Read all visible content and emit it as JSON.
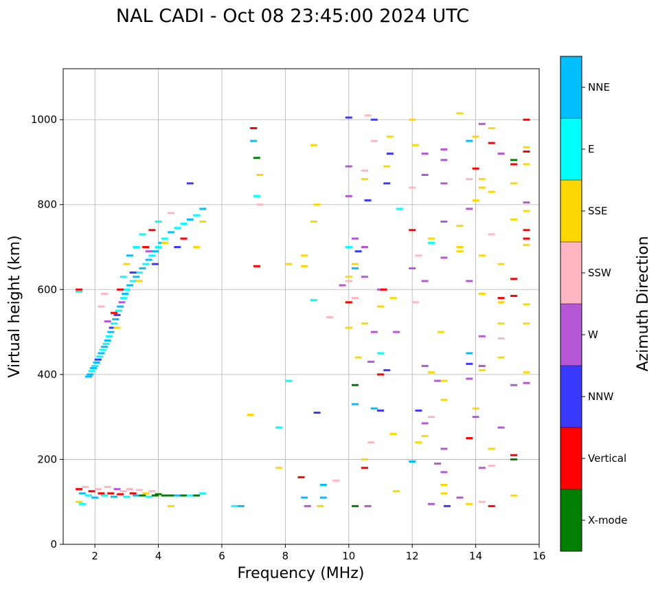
{
  "chart_data": {
    "type": "scatter",
    "title": "NAL CADI - Oct 08 23:45:00 2024 UTC",
    "xlabel": "Frequency (MHz)",
    "ylabel": "Virtual height (km)",
    "xlim": [
      1,
      16
    ],
    "ylim": [
      0,
      1120
    ],
    "xticks": [
      2,
      4,
      6,
      8,
      10,
      12,
      14,
      16
    ],
    "yticks": [
      0,
      200,
      400,
      600,
      800,
      1000
    ],
    "grid": true,
    "colorbar": {
      "label": "Azimuth Direction",
      "categories": [
        {
          "name": "X-mode",
          "color": "#008000"
        },
        {
          "name": "Vertical",
          "color": "#ff0000"
        },
        {
          "name": "NNW",
          "color": "#3a3aff"
        },
        {
          "name": "W",
          "color": "#b557d6"
        },
        {
          "name": "SSW",
          "color": "#ffb6c1"
        },
        {
          "name": "SSE",
          "color": "#ffd700"
        },
        {
          "name": "E",
          "color": "#00ffff"
        },
        {
          "name": "NNE",
          "color": "#00bfff"
        }
      ]
    },
    "note": "Echoes listed as [frequency MHz, virtual height km, direction]; estimated from the plot.",
    "points": [
      [
        1.5,
        600,
        "Vertical"
      ],
      [
        1.5,
        595,
        "E"
      ],
      [
        1.8,
        395,
        "NNE"
      ],
      [
        1.85,
        400,
        "NNE"
      ],
      [
        1.9,
        408,
        "E"
      ],
      [
        1.95,
        415,
        "NNE"
      ],
      [
        2.0,
        420,
        "E"
      ],
      [
        2.05,
        428,
        "NNE"
      ],
      [
        2.1,
        435,
        "NNW"
      ],
      [
        2.15,
        442,
        "E"
      ],
      [
        2.2,
        450,
        "NNE"
      ],
      [
        2.25,
        458,
        "E"
      ],
      [
        2.3,
        465,
        "NNE"
      ],
      [
        2.35,
        472,
        "E"
      ],
      [
        2.4,
        480,
        "NNE"
      ],
      [
        2.45,
        490,
        "E"
      ],
      [
        2.5,
        500,
        "NNE"
      ],
      [
        2.55,
        510,
        "NNW"
      ],
      [
        2.6,
        520,
        "E"
      ],
      [
        2.65,
        530,
        "NNE"
      ],
      [
        2.7,
        540,
        "NNW"
      ],
      [
        2.75,
        550,
        "E"
      ],
      [
        2.8,
        560,
        "NNE"
      ],
      [
        2.85,
        570,
        "W"
      ],
      [
        2.9,
        580,
        "E"
      ],
      [
        2.95,
        590,
        "NNE"
      ],
      [
        3.0,
        600,
        "E"
      ],
      [
        3.1,
        610,
        "NNE"
      ],
      [
        3.2,
        620,
        "E"
      ],
      [
        3.3,
        630,
        "NNE"
      ],
      [
        3.4,
        640,
        "E"
      ],
      [
        3.5,
        650,
        "NNE"
      ],
      [
        3.6,
        660,
        "E"
      ],
      [
        3.7,
        670,
        "NNE"
      ],
      [
        3.8,
        680,
        "E"
      ],
      [
        3.9,
        690,
        "NNE"
      ],
      [
        4.0,
        700,
        "E"
      ],
      [
        4.1,
        710,
        "NNE"
      ],
      [
        4.2,
        720,
        "E"
      ],
      [
        4.4,
        735,
        "NNE"
      ],
      [
        4.6,
        745,
        "E"
      ],
      [
        4.8,
        755,
        "E"
      ],
      [
        5.0,
        765,
        "NNE"
      ],
      [
        5.2,
        775,
        "E"
      ],
      [
        5.4,
        790,
        "NNE"
      ],
      [
        2.2,
        560,
        "SSW"
      ],
      [
        2.3,
        590,
        "SSW"
      ],
      [
        2.4,
        525,
        "W"
      ],
      [
        2.6,
        545,
        "Vertical"
      ],
      [
        2.7,
        510,
        "SSE"
      ],
      [
        2.8,
        600,
        "Vertical"
      ],
      [
        2.9,
        630,
        "E"
      ],
      [
        3.0,
        660,
        "SSE"
      ],
      [
        3.1,
        680,
        "NNE"
      ],
      [
        3.2,
        640,
        "NNW"
      ],
      [
        3.3,
        700,
        "E"
      ],
      [
        3.4,
        620,
        "SSE"
      ],
      [
        3.5,
        730,
        "E"
      ],
      [
        3.6,
        700,
        "Vertical"
      ],
      [
        3.7,
        690,
        "W"
      ],
      [
        3.8,
        740,
        "Vertical"
      ],
      [
        3.9,
        660,
        "NNW"
      ],
      [
        4.0,
        760,
        "E"
      ],
      [
        4.2,
        710,
        "SSE"
      ],
      [
        4.4,
        780,
        "SSW"
      ],
      [
        4.6,
        700,
        "NNW"
      ],
      [
        4.8,
        720,
        "Vertical"
      ],
      [
        5.0,
        850,
        "NNW"
      ],
      [
        5.2,
        700,
        "SSE"
      ],
      [
        5.4,
        760,
        "SSE"
      ],
      [
        1.5,
        130,
        "Vertical"
      ],
      [
        1.5,
        100,
        "SSE"
      ],
      [
        1.6,
        120,
        "NNE"
      ],
      [
        1.6,
        95,
        "E"
      ],
      [
        1.7,
        135,
        "SSW"
      ],
      [
        1.8,
        115,
        "E"
      ],
      [
        1.9,
        125,
        "Vertical"
      ],
      [
        2.0,
        110,
        "NNE"
      ],
      [
        2.1,
        130,
        "SSW"
      ],
      [
        2.2,
        120,
        "Vertical"
      ],
      [
        2.3,
        115,
        "E"
      ],
      [
        2.4,
        135,
        "SSW"
      ],
      [
        2.5,
        120,
        "Vertical"
      ],
      [
        2.6,
        112,
        "NNE"
      ],
      [
        2.7,
        130,
        "W"
      ],
      [
        2.8,
        118,
        "Vertical"
      ],
      [
        2.9,
        125,
        "SSW"
      ],
      [
        3.0,
        112,
        "E"
      ],
      [
        3.1,
        130,
        "SSW"
      ],
      [
        3.2,
        120,
        "Vertical"
      ],
      [
        3.3,
        115,
        "NNE"
      ],
      [
        3.4,
        128,
        "SSW"
      ],
      [
        3.5,
        115,
        "X-mode"
      ],
      [
        3.6,
        120,
        "SSE"
      ],
      [
        3.7,
        112,
        "E"
      ],
      [
        3.8,
        125,
        "SSW"
      ],
      [
        3.9,
        115,
        "X-mode"
      ],
      [
        4.0,
        118,
        "X-mode"
      ],
      [
        4.2,
        115,
        "X-mode"
      ],
      [
        4.4,
        115,
        "X-mode"
      ],
      [
        4.6,
        115,
        "NNE"
      ],
      [
        4.8,
        115,
        "X-mode"
      ],
      [
        5.0,
        115,
        "E"
      ],
      [
        5.2,
        115,
        "X-mode"
      ],
      [
        5.4,
        120,
        "E"
      ],
      [
        4.4,
        90,
        "SSE"
      ],
      [
        6.4,
        90,
        "E"
      ],
      [
        6.6,
        90,
        "NNE"
      ],
      [
        7.0,
        980,
        "Vertical"
      ],
      [
        7.0,
        950,
        "NNE"
      ],
      [
        7.1,
        910,
        "X-mode"
      ],
      [
        7.2,
        870,
        "SSE"
      ],
      [
        7.1,
        820,
        "E"
      ],
      [
        7.2,
        800,
        "SSW"
      ],
      [
        7.1,
        655,
        "Vertical"
      ],
      [
        6.9,
        305,
        "SSE"
      ],
      [
        7.8,
        275,
        "E"
      ],
      [
        7.8,
        180,
        "SSE"
      ],
      [
        8.1,
        385,
        "E"
      ],
      [
        8.1,
        660,
        "SSE"
      ],
      [
        8.6,
        680,
        "SSE"
      ],
      [
        8.6,
        655,
        "SSE"
      ],
      [
        8.9,
        940,
        "SSE"
      ],
      [
        9.0,
        800,
        "SSE"
      ],
      [
        8.9,
        760,
        "SSE"
      ],
      [
        8.9,
        575,
        "E"
      ],
      [
        8.5,
        158,
        "Vertical"
      ],
      [
        8.6,
        110,
        "NNE"
      ],
      [
        8.7,
        90,
        "W"
      ],
      [
        9.0,
        310,
        "NNW"
      ],
      [
        9.2,
        140,
        "NNE"
      ],
      [
        9.2,
        110,
        "NNE"
      ],
      [
        9.1,
        90,
        "SSE"
      ],
      [
        9.4,
        535,
        "SSW"
      ],
      [
        9.6,
        150,
        "SSW"
      ],
      [
        9.8,
        610,
        "W"
      ],
      [
        10.0,
        1005,
        "NNW"
      ],
      [
        10.0,
        890,
        "W"
      ],
      [
        10.0,
        820,
        "W"
      ],
      [
        10.0,
        700,
        "E"
      ],
      [
        10.0,
        630,
        "SSE"
      ],
      [
        10.0,
        570,
        "Vertical"
      ],
      [
        10.0,
        510,
        "SSE"
      ],
      [
        10.0,
        620,
        "SSW"
      ],
      [
        10.2,
        660,
        "SSE"
      ],
      [
        10.2,
        720,
        "W"
      ],
      [
        10.2,
        650,
        "NNE"
      ],
      [
        10.3,
        690,
        "NNW"
      ],
      [
        10.2,
        580,
        "SSW"
      ],
      [
        10.2,
        375,
        "X-mode"
      ],
      [
        10.2,
        330,
        "NNE"
      ],
      [
        10.3,
        440,
        "SSE"
      ],
      [
        10.5,
        880,
        "SSW"
      ],
      [
        10.5,
        860,
        "SSE"
      ],
      [
        10.6,
        810,
        "NNW"
      ],
      [
        10.5,
        700,
        "W"
      ],
      [
        10.5,
        630,
        "W"
      ],
      [
        10.6,
        1010,
        "SSW"
      ],
      [
        10.8,
        1000,
        "NNW"
      ],
      [
        10.8,
        950,
        "SSW"
      ],
      [
        10.5,
        520,
        "SSE"
      ],
      [
        10.7,
        430,
        "W"
      ],
      [
        10.8,
        500,
        "W"
      ],
      [
        10.8,
        320,
        "NNE"
      ],
      [
        10.5,
        200,
        "SSE"
      ],
      [
        10.5,
        180,
        "Vertical"
      ],
      [
        10.6,
        90,
        "W"
      ],
      [
        10.2,
        90,
        "X-mode"
      ],
      [
        10.7,
        240,
        "SSW"
      ],
      [
        11.0,
        600,
        "W"
      ],
      [
        11.1,
        600,
        "Vertical"
      ],
      [
        11.0,
        560,
        "SSE"
      ],
      [
        11.0,
        450,
        "E"
      ],
      [
        11.0,
        400,
        "Vertical"
      ],
      [
        11.2,
        410,
        "NNW"
      ],
      [
        11.0,
        315,
        "NNW"
      ],
      [
        11.2,
        890,
        "SSE"
      ],
      [
        11.2,
        850,
        "NNW"
      ],
      [
        11.3,
        960,
        "SSE"
      ],
      [
        11.3,
        920,
        "NNW"
      ],
      [
        11.4,
        580,
        "SSE"
      ],
      [
        11.5,
        500,
        "W"
      ],
      [
        11.6,
        790,
        "E"
      ],
      [
        11.4,
        260,
        "SSE"
      ],
      [
        11.5,
        125,
        "SSE"
      ],
      [
        12.0,
        1000,
        "SSE"
      ],
      [
        12.0,
        840,
        "SSW"
      ],
      [
        12.0,
        740,
        "Vertical"
      ],
      [
        12.0,
        650,
        "W"
      ],
      [
        12.0,
        195,
        "NNE"
      ],
      [
        12.1,
        940,
        "SSE"
      ],
      [
        12.2,
        680,
        "SSW"
      ],
      [
        12.1,
        570,
        "SSW"
      ],
      [
        12.2,
        315,
        "NNW"
      ],
      [
        12.2,
        240,
        "SSE"
      ],
      [
        12.4,
        920,
        "W"
      ],
      [
        12.4,
        870,
        "W"
      ],
      [
        12.4,
        620,
        "W"
      ],
      [
        12.4,
        420,
        "W"
      ],
      [
        12.4,
        285,
        "W"
      ],
      [
        12.4,
        255,
        "SSE"
      ],
      [
        12.6,
        720,
        "SSE"
      ],
      [
        12.6,
        710,
        "E"
      ],
      [
        12.6,
        405,
        "SSE"
      ],
      [
        12.6,
        300,
        "SSW"
      ],
      [
        12.6,
        95,
        "W"
      ],
      [
        12.8,
        190,
        "W"
      ],
      [
        12.8,
        385,
        "W"
      ],
      [
        12.9,
        500,
        "SSE"
      ],
      [
        13.0,
        170,
        "W"
      ],
      [
        13.0,
        140,
        "SSE"
      ],
      [
        13.1,
        90,
        "NNW"
      ],
      [
        13.0,
        930,
        "W"
      ],
      [
        13.0,
        905,
        "W"
      ],
      [
        13.0,
        850,
        "W"
      ],
      [
        13.0,
        760,
        "W"
      ],
      [
        13.0,
        675,
        "W"
      ],
      [
        13.0,
        385,
        "SSE"
      ],
      [
        13.0,
        340,
        "SSE"
      ],
      [
        13.0,
        225,
        "W"
      ],
      [
        13.0,
        120,
        "SSE"
      ],
      [
        13.5,
        1015,
        "SSE"
      ],
      [
        13.5,
        750,
        "SSE"
      ],
      [
        13.5,
        700,
        "SSE"
      ],
      [
        13.5,
        690,
        "SSE"
      ],
      [
        13.5,
        110,
        "W"
      ],
      [
        13.8,
        950,
        "NNE"
      ],
      [
        13.8,
        860,
        "SSW"
      ],
      [
        13.8,
        790,
        "W"
      ],
      [
        13.8,
        620,
        "W"
      ],
      [
        13.8,
        450,
        "NNE"
      ],
      [
        13.8,
        425,
        "NNW"
      ],
      [
        13.8,
        390,
        "W"
      ],
      [
        13.8,
        250,
        "Vertical"
      ],
      [
        13.8,
        95,
        "SSE"
      ],
      [
        14.2,
        990,
        "W"
      ],
      [
        14.0,
        960,
        "SSE"
      ],
      [
        14.0,
        885,
        "Vertical"
      ],
      [
        14.2,
        860,
        "SSE"
      ],
      [
        14.2,
        840,
        "SSE"
      ],
      [
        14.0,
        810,
        "SSE"
      ],
      [
        14.2,
        680,
        "SSE"
      ],
      [
        14.2,
        590,
        "SSE"
      ],
      [
        14.2,
        490,
        "W"
      ],
      [
        14.2,
        420,
        "W"
      ],
      [
        14.2,
        410,
        "SSE"
      ],
      [
        14.0,
        320,
        "SSE"
      ],
      [
        14.0,
        300,
        "W"
      ],
      [
        14.2,
        180,
        "W"
      ],
      [
        14.2,
        100,
        "SSW"
      ],
      [
        14.5,
        980,
        "SSE"
      ],
      [
        14.5,
        945,
        "Vertical"
      ],
      [
        14.5,
        830,
        "SSE"
      ],
      [
        14.5,
        730,
        "SSW"
      ],
      [
        14.5,
        225,
        "SSE"
      ],
      [
        14.5,
        185,
        "SSW"
      ],
      [
        14.5,
        90,
        "Vertical"
      ],
      [
        14.8,
        920,
        "W"
      ],
      [
        14.8,
        660,
        "SSE"
      ],
      [
        14.8,
        580,
        "Vertical"
      ],
      [
        14.8,
        570,
        "SSE"
      ],
      [
        14.8,
        520,
        "SSE"
      ],
      [
        14.8,
        485,
        "SSW"
      ],
      [
        14.8,
        440,
        "SSE"
      ],
      [
        14.8,
        275,
        "W"
      ],
      [
        15.2,
        905,
        "X-mode"
      ],
      [
        15.2,
        895,
        "Vertical"
      ],
      [
        15.2,
        850,
        "SSE"
      ],
      [
        15.2,
        765,
        "SSE"
      ],
      [
        15.2,
        625,
        "Vertical"
      ],
      [
        15.2,
        585,
        "Vertical"
      ],
      [
        15.2,
        375,
        "W"
      ],
      [
        15.2,
        210,
        "Vertical"
      ],
      [
        15.2,
        200,
        "X-mode"
      ],
      [
        15.2,
        115,
        "SSE"
      ],
      [
        15.6,
        1000,
        "Vertical"
      ],
      [
        15.6,
        935,
        "SSE"
      ],
      [
        15.6,
        925,
        "Vertical"
      ],
      [
        15.6,
        895,
        "SSE"
      ],
      [
        15.6,
        805,
        "W"
      ],
      [
        15.6,
        785,
        "SSE"
      ],
      [
        15.6,
        740,
        "Vertical"
      ],
      [
        15.6,
        720,
        "Vertical"
      ],
      [
        15.6,
        705,
        "SSE"
      ],
      [
        15.6,
        565,
        "SSE"
      ],
      [
        15.6,
        520,
        "SSE"
      ],
      [
        15.6,
        405,
        "SSE"
      ],
      [
        15.6,
        380,
        "W"
      ]
    ]
  }
}
